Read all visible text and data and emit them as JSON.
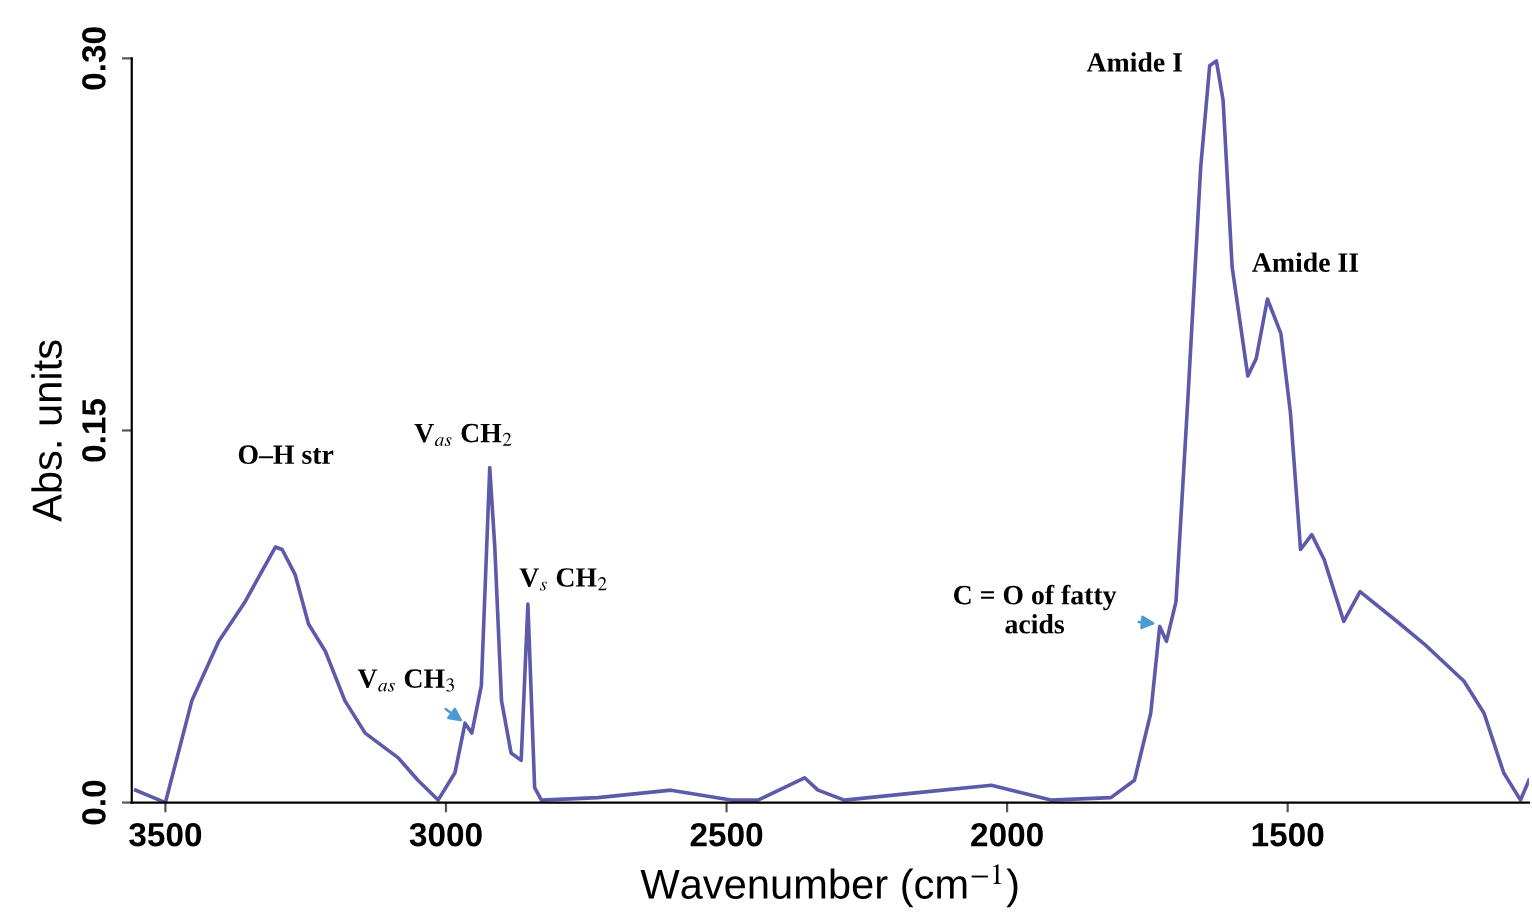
{
  "chart_data": {
    "type": "line",
    "xlabel": "Wavenumber (cm$^{−1}$)",
    "ylabel": "Abs. units",
    "xlim": [
      3560,
      1070
    ],
    "ylim": [
      0,
      0.3
    ],
    "xticks": [
      3500,
      3000,
      2500,
      2000,
      1500
    ],
    "yticks": [
      {
        "value": 0,
        "label": "0.0"
      },
      0.15,
      {
        "value": 0.3,
        "label": "0.30"
      }
    ],
    "grid": false,
    "legend": false,
    "series": [
      {
        "color": "#5b5ba9",
        "x": [
          3553,
          3500,
          3453,
          3405,
          3358,
          3304,
          3292,
          3269,
          3245,
          3215,
          3180,
          3144,
          3085,
          3050,
          3014,
          2984,
          2966,
          2954,
          2937,
          2922,
          2913,
          2901,
          2884,
          2866,
          2854,
          2842,
          2830,
          2729,
          2599,
          2492,
          2444,
          2361,
          2337,
          2290,
          2159,
          2028,
          1922,
          1815,
          1773,
          1744,
          1728,
          1716,
          1699,
          1678,
          1655,
          1639,
          1627,
          1615,
          1599,
          1571,
          1556,
          1536,
          1512,
          1495,
          1477,
          1457,
          1435,
          1400,
          1371,
          1305,
          1257,
          1186,
          1150,
          1115,
          1085,
          1070
        ],
        "values": [
          0.005,
          0.0,
          0.041,
          0.065,
          0.081,
          0.103,
          0.102,
          0.092,
          0.072,
          0.061,
          0.041,
          0.028,
          0.018,
          0.009,
          0.001,
          0.012,
          0.032,
          0.028,
          0.047,
          0.135,
          0.103,
          0.041,
          0.02,
          0.017,
          0.08,
          0.006,
          0.001,
          0.002,
          0.005,
          0.001,
          0.001,
          0.01,
          0.005,
          0.001,
          0.004,
          0.007,
          0.001,
          0.002,
          0.009,
          0.036,
          0.071,
          0.065,
          0.081,
          0.162,
          0.256,
          0.297,
          0.299,
          0.283,
          0.216,
          0.172,
          0.179,
          0.203,
          0.189,
          0.157,
          0.102,
          0.108,
          0.098,
          0.073,
          0.085,
          0.073,
          0.064,
          0.049,
          0.036,
          0.012,
          0.001,
          0.009
        ]
      }
    ],
    "annotations": [
      {
        "text": "O–H str",
        "x": 3300,
        "y": 0.103
      },
      {
        "text": "V$_{as}$ CH$_{2}$",
        "x": 2922,
        "y": 0.135
      },
      {
        "text": "V$_{s}$ CH$_{2}$",
        "x": 2854,
        "y": 0.08
      },
      {
        "text": "V$_{as}$ CH$_{3}$",
        "x": 2966,
        "y": 0.032
      },
      {
        "text": "Amide I",
        "x": 1630,
        "y": 0.299
      },
      {
        "text": "Amide II",
        "x": 1536,
        "y": 0.203
      },
      {
        "text": "C = O of fatty\nacids",
        "x": 1730,
        "y": 0.072
      }
    ]
  }
}
